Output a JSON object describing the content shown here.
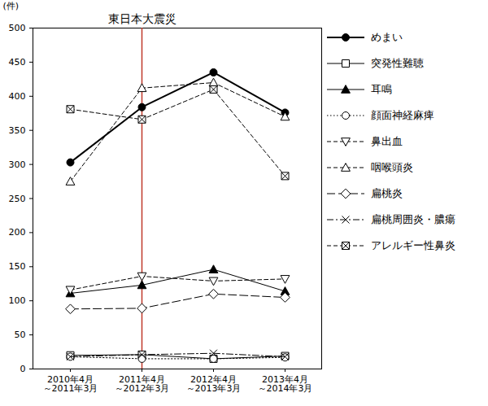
{
  "chart_data": {
    "type": "line",
    "y_label": "(件)",
    "categories": [
      "2010年4月\n～2011年3月",
      "2011年4月\n～2012年3月",
      "2012年4月\n～2013年3月",
      "2013年4月\n～2014年3月"
    ],
    "ylim": [
      0,
      500
    ],
    "yticks": [
      0,
      50,
      100,
      150,
      200,
      250,
      300,
      350,
      400,
      450,
      500
    ],
    "grid": false,
    "legend": "right",
    "annotations": [
      {
        "text": "東日本大震災",
        "category": "2011年4月\n～2012年3月",
        "color": "#c0392b"
      }
    ],
    "series": [
      {
        "name": "めまい",
        "color": "#000000",
        "marker": "circle_filled",
        "line_style": "solid_bold",
        "values": [
          303,
          384,
          435,
          376
        ]
      },
      {
        "name": "突発性難聴",
        "color": "#000000",
        "marker": "square",
        "line_style": "solid",
        "values": [
          20,
          21,
          15,
          19
        ]
      },
      {
        "name": "耳鳴",
        "color": "#000000",
        "marker": "triangle_filled",
        "line_style": "solid",
        "values": [
          111,
          123,
          146,
          114
        ]
      },
      {
        "name": "顔面神経麻痺",
        "color": "#000000",
        "marker": "circle",
        "line_style": "dotted",
        "values": [
          18,
          15,
          15,
          17
        ]
      },
      {
        "name": "鼻出血",
        "color": "#000000",
        "marker": "triangle_down",
        "line_style": "dashed",
        "values": [
          116,
          136,
          129,
          132
        ]
      },
      {
        "name": "咽喉頭炎",
        "color": "#000000",
        "marker": "triangle",
        "line_style": "dashed",
        "values": [
          275,
          412,
          420,
          370
        ]
      },
      {
        "name": "扁桃炎",
        "color": "#000000",
        "marker": "diamond",
        "line_style": "longdash",
        "values": [
          88,
          89,
          110,
          105
        ]
      },
      {
        "name": "扁桃周囲炎・膿瘍",
        "color": "#000000",
        "marker": "x",
        "line_style": "dashdot",
        "values": [
          18,
          21,
          23,
          18
        ]
      },
      {
        "name": "アレルギー性鼻炎",
        "color": "#000000",
        "marker": "square_x",
        "line_style": "dashed",
        "values": [
          381,
          366,
          410,
          283
        ]
      }
    ]
  }
}
